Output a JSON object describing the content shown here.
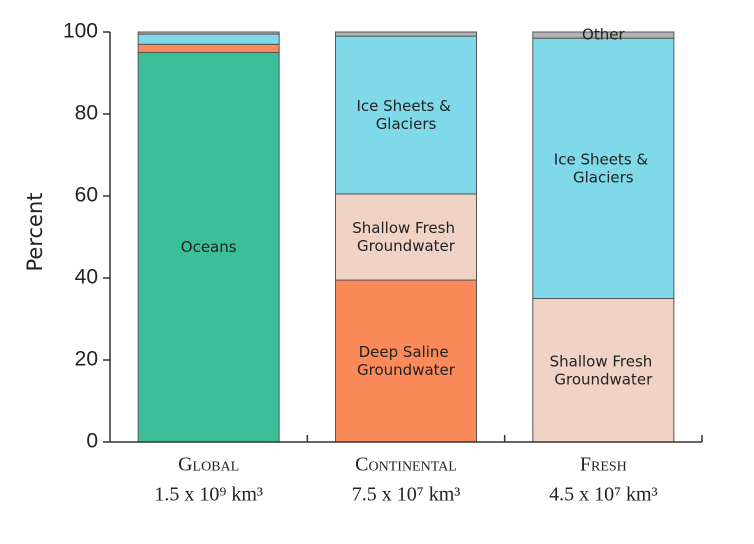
{
  "chart_data": {
    "type": "stacked_bar",
    "y_label": "Percent",
    "categories": [
      "Global",
      "Continental",
      "Fresh"
    ],
    "category_volumes": [
      "1.5 x 10⁹ km³",
      "7.5 x 10⁷ km³",
      "4.5 x 10⁷ km³"
    ],
    "series": [
      {
        "name": "Oceans",
        "color": "#3cbf98",
        "values": [
          95,
          null,
          null
        ],
        "labeled": [
          true,
          false,
          false
        ]
      },
      {
        "name": "Deep Saline Groundwater",
        "color": "#fb8a5b",
        "values": [
          2,
          39.5,
          null
        ],
        "labeled": [
          false,
          true,
          false
        ]
      },
      {
        "name": "Shallow Fresh Groundwater",
        "color": "#f0d3c5",
        "values": [
          null,
          21,
          35
        ],
        "labeled": [
          false,
          true,
          true
        ]
      },
      {
        "name": "Ice Sheets & Glaciers",
        "color": "#7fd9e8",
        "values": [
          2.5,
          38.5,
          63.5
        ],
        "labeled": [
          false,
          true,
          true
        ]
      },
      {
        "name": "Other",
        "color": "#b3b3b3",
        "values": [
          0.5,
          1,
          1.5
        ],
        "labeled": [
          false,
          false,
          true
        ]
      }
    ],
    "ylim": [
      0,
      100
    ],
    "yticks": [
      0,
      20,
      40,
      60,
      80,
      100
    ]
  }
}
